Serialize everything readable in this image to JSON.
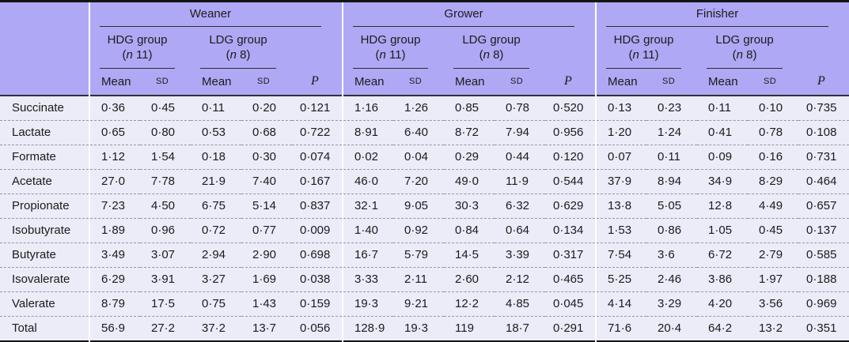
{
  "table": {
    "colors": {
      "header_bg": "#afa8f5",
      "body_bg": "#ebecf7",
      "top_rule": "#141414"
    },
    "col_headers": {
      "mean": "Mean",
      "sd": "SD",
      "p": "P"
    },
    "sections": [
      {
        "title": "Weaner",
        "groups": [
          {
            "label": "HDG group",
            "n_open": "(",
            "n_italic": "n",
            "n_rest": " 11)"
          },
          {
            "label": "LDG group",
            "n_open": "(",
            "n_italic": "n",
            "n_rest": " 8)"
          }
        ]
      },
      {
        "title": "Grower",
        "groups": [
          {
            "label": "HDG group",
            "n_open": "(",
            "n_italic": "n",
            "n_rest": " 11)"
          },
          {
            "label": "LDG group",
            "n_open": "(",
            "n_italic": "n",
            "n_rest": " 8)"
          }
        ]
      },
      {
        "title": "Finisher",
        "groups": [
          {
            "label": "HDG group",
            "n_open": "(",
            "n_italic": "n",
            "n_rest": " 11)"
          },
          {
            "label": "LDG group",
            "n_open": "(",
            "n_italic": "n",
            "n_rest": " 8)"
          }
        ]
      }
    ],
    "rows": [
      {
        "label": "Succinate",
        "values": [
          "0·36",
          "0·45",
          "0·11",
          "0·20",
          "0·121",
          "1·16",
          "1·26",
          "0·85",
          "0·78",
          "0·520",
          "0·13",
          "0·23",
          "0·11",
          "0·10",
          "0·735"
        ]
      },
      {
        "label": "Lactate",
        "values": [
          "0·65",
          "0·80",
          "0·53",
          "0·68",
          "0·722",
          "8·91",
          "6·40",
          "8·72",
          "7·94",
          "0·956",
          "1·20",
          "1·24",
          "0·41",
          "0·78",
          "0·108"
        ]
      },
      {
        "label": "Formate",
        "values": [
          "1·12",
          "1·54",
          "0·18",
          "0·30",
          "0·074",
          "0·02",
          "0·04",
          "0·29",
          "0·44",
          "0·120",
          "0·07",
          "0·11",
          "0·09",
          "0·16",
          "0·731"
        ]
      },
      {
        "label": "Acetate",
        "values": [
          "27·0",
          "7·78",
          "21·9",
          "7·40",
          "0·167",
          "46·0",
          "7·20",
          "49·0",
          "11·9",
          "0·544",
          "37·9",
          "8·94",
          "34·9",
          "8·29",
          "0·464"
        ]
      },
      {
        "label": "Propionate",
        "values": [
          "7·23",
          "4·50",
          "6·75",
          "5·14",
          "0·837",
          "32·1",
          "9·05",
          "30·3",
          "6·32",
          "0·629",
          "13·8",
          "5·05",
          "12·8",
          "4·49",
          "0·657"
        ]
      },
      {
        "label": "Isobutyrate",
        "values": [
          "1·89",
          "0·96",
          "0·72",
          "0·77",
          "0·009",
          "1·40",
          "0·92",
          "0·84",
          "0·64",
          "0·134",
          "1·53",
          "0·86",
          "1·05",
          "0·45",
          "0·137"
        ]
      },
      {
        "label": "Butyrate",
        "values": [
          "3·49",
          "3·07",
          "2·94",
          "2·90",
          "0·698",
          "16·7",
          "5·79",
          "14·5",
          "3·39",
          "0·317",
          "7·54",
          "3·6",
          "6·72",
          "2·79",
          "0·585"
        ]
      },
      {
        "label": "Isovalerate",
        "values": [
          "6·29",
          "3·91",
          "3·27",
          "1·69",
          "0·038",
          "3·33",
          "2·11",
          "2·60",
          "2·12",
          "0·465",
          "5·25",
          "2·46",
          "3·86",
          "1·97",
          "0·188"
        ]
      },
      {
        "label": "Valerate",
        "values": [
          "8·79",
          "17·5",
          "0·75",
          "1·43",
          "0·159",
          "19·3",
          "9·21",
          "12·2",
          "4·85",
          "0·045",
          "4·14",
          "3·29",
          "4·20",
          "3·56",
          "0·969"
        ]
      },
      {
        "label": "Total",
        "values": [
          "56·9",
          "27·2",
          "37·2",
          "13·7",
          "0·056",
          "128·9",
          "19·3",
          "119",
          "18·7",
          "0·291",
          "71·6",
          "20·4",
          "64·2",
          "13·2",
          "0·351"
        ]
      }
    ]
  }
}
